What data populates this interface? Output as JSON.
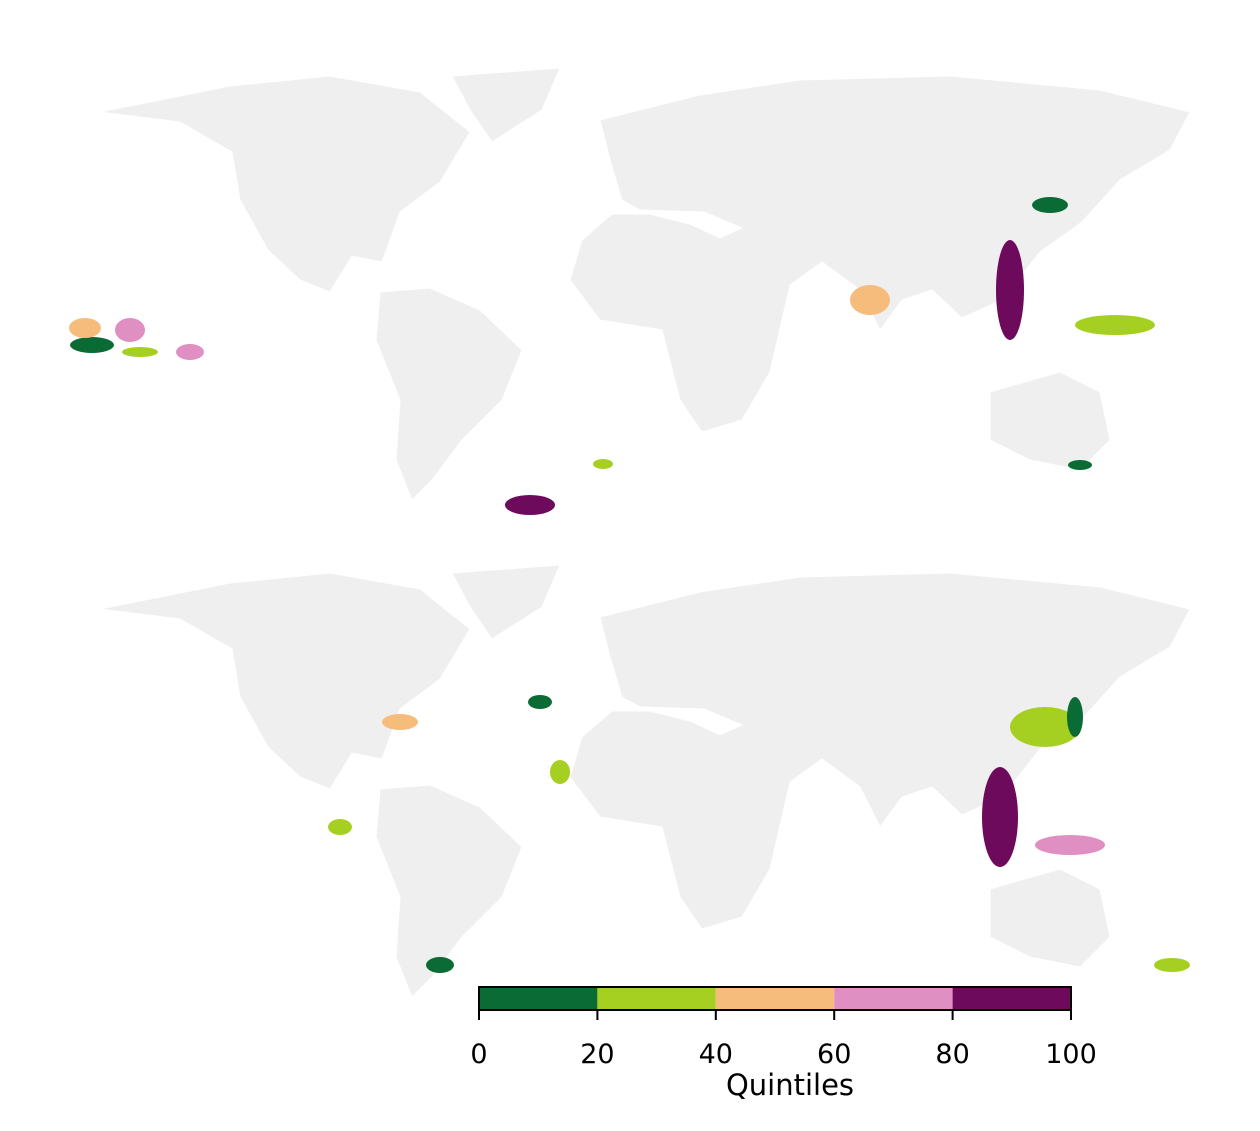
{
  "chart_data": {
    "type": "colorbar",
    "label": "Quintiles",
    "bins": [
      0,
      20,
      40,
      60,
      80,
      100
    ],
    "colors": [
      "#0a6b34",
      "#a6d021",
      "#f6bc7c",
      "#e08fc3",
      "#6e0a5c"
    ],
    "xlim": [
      0,
      100
    ],
    "xticks": [
      0,
      20,
      40,
      60,
      80,
      100
    ]
  }
}
